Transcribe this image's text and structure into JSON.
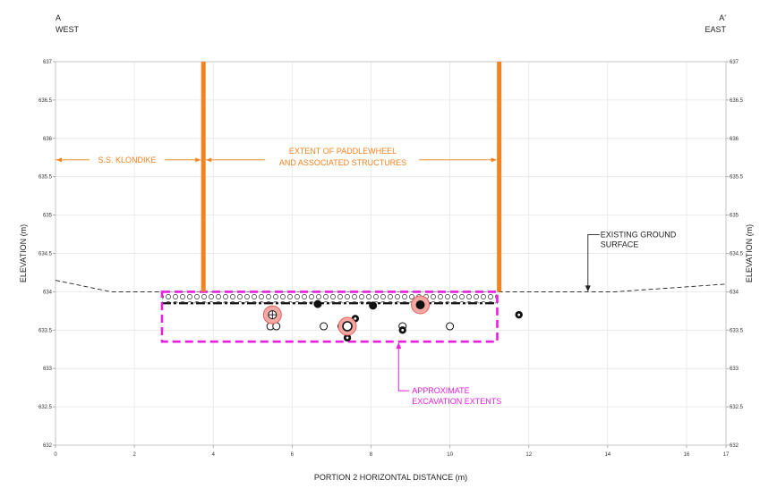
{
  "header": {
    "left_section": "A",
    "left_direction": "WEST",
    "right_section": "A'",
    "right_direction": "EAST"
  },
  "annotations": {
    "ss_klondike": "S.S. KLONDIKE",
    "paddlewheel_line1": "EXTENT OF PADDLEWHEEL",
    "paddlewheel_line2": "AND ASSOCIATED STRUCTURES",
    "ground_line1": "EXISTING GROUND",
    "ground_line2": "SURFACE",
    "excavation_line1": "APPROXIMATE",
    "excavation_line2": "EXCAVATION EXTENTS"
  },
  "colors": {
    "paddlewheel": "#f5821f",
    "excavation": "#e81ee0",
    "highlight_fill": "#f4a8a3",
    "highlight_stroke": "#e3605a",
    "ground": "#222222",
    "grid": "#e6e6e6"
  },
  "chart_data": {
    "type": "cross-section",
    "xlabel": "PORTION 2 HORIZONTAL DISTANCE (m)",
    "ylabel_left": "ELEVATION (m)",
    "ylabel_right": "ELEVATION (m)",
    "xlim": [
      0,
      17
    ],
    "ylim": [
      632,
      637
    ],
    "x_ticks": [
      "0",
      "2",
      "4",
      "6",
      "8",
      "10",
      "12",
      "14",
      "16",
      "17"
    ],
    "y_ticks": [
      "632",
      "632.5",
      "633",
      "633.5",
      "634",
      "634.5",
      "635",
      "635.5",
      "636",
      "636.5",
      "637"
    ],
    "grid": true,
    "ground_surface": [
      {
        "x": 0,
        "y": 634.15
      },
      {
        "x": 1.4,
        "y": 634.0
      },
      {
        "x": 2.7,
        "y": 634.0
      },
      {
        "x": 11.2,
        "y": 634.0
      },
      {
        "x": 14.2,
        "y": 634.0
      },
      {
        "x": 17,
        "y": 634.1
      }
    ],
    "fill_band": {
      "x_start": 2.7,
      "x_end": 11.2,
      "y_top": 634.0,
      "y_bottom": 633.85
    },
    "paddlewheel_posts_x": [
      3.75,
      11.25
    ],
    "excavation_extents": {
      "x_start": 2.7,
      "x_end": 11.2,
      "y_top": 634.0,
      "y_bottom": 633.35
    },
    "dimension_line_y": 635.72,
    "ground_callout": {
      "x": 13.5,
      "y": 634.0
    },
    "excavation_callout": {
      "x": 8.7,
      "y": 633.35
    },
    "points": [
      {
        "x": 5.45,
        "y": 633.55,
        "marker": "open"
      },
      {
        "x": 5.6,
        "y": 633.55,
        "marker": "open"
      },
      {
        "x": 6.8,
        "y": 633.55,
        "marker": "open"
      },
      {
        "x": 7.25,
        "y": 633.55,
        "marker": "open"
      },
      {
        "x": 8.8,
        "y": 633.55,
        "marker": "open"
      },
      {
        "x": 10.0,
        "y": 633.55,
        "marker": "open"
      },
      {
        "x": 6.65,
        "y": 633.84,
        "marker": "solid"
      },
      {
        "x": 8.05,
        "y": 633.82,
        "marker": "solid"
      },
      {
        "x": 7.6,
        "y": 633.65,
        "marker": "solid-dot"
      },
      {
        "x": 7.4,
        "y": 633.4,
        "marker": "solid-dot"
      },
      {
        "x": 8.8,
        "y": 633.5,
        "marker": "solid-dot"
      },
      {
        "x": 11.75,
        "y": 633.7,
        "marker": "solid-dot"
      },
      {
        "x": 5.5,
        "y": 633.7,
        "marker": "highlight-cross"
      },
      {
        "x": 7.4,
        "y": 633.55,
        "marker": "highlight-open"
      },
      {
        "x": 9.25,
        "y": 633.83,
        "marker": "highlight-solid"
      }
    ]
  }
}
